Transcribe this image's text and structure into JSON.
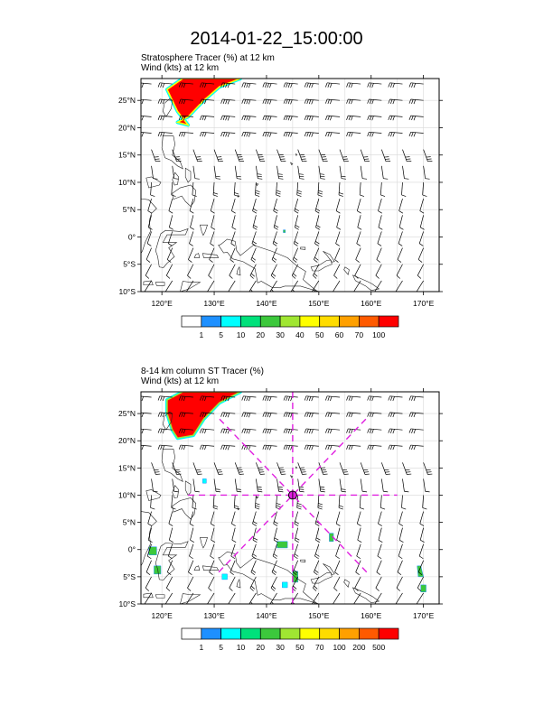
{
  "main_title": "2014-01-22_15:00:00",
  "chart_data": [
    {
      "type": "heatmap",
      "title_lines": [
        "Stratosphere Tracer   (%)    at   12 km",
        "Wind   (kts)     at  12 km"
      ],
      "xlim": [
        116,
        173
      ],
      "ylim": [
        -10,
        29
      ],
      "x_ticks": [
        120,
        130,
        140,
        150,
        160,
        170
      ],
      "x_tick_labels": [
        "120°E",
        "130°E",
        "140°E",
        "150°E",
        "160°E",
        "170°E"
      ],
      "y_ticks": [
        -10,
        -5,
        0,
        5,
        10,
        15,
        20,
        25
      ],
      "y_tick_labels": [
        "10°S",
        "5°S",
        "0°",
        "5°N",
        "10°N",
        "15°N",
        "20°N",
        "25°N"
      ],
      "grid": true,
      "colorbar": {
        "labels": [
          "1",
          "5",
          "10",
          "20",
          "30",
          "40",
          "50",
          "60",
          "70",
          "100"
        ],
        "colors": [
          "#ffffff",
          "#1e90ff",
          "#00ffff",
          "#00e17b",
          "#3cc83c",
          "#a0e632",
          "#ffff00",
          "#ffdc00",
          "#ffa000",
          "#ff5a00",
          "#ff0000"
        ]
      },
      "tracer_regions": [
        {
          "value": 100,
          "outline": [
            [
              124,
              29
            ],
            [
              135,
              29
            ],
            [
              131,
              27.5
            ],
            [
              128,
              25
            ],
            [
              125,
              22
            ],
            [
              123,
              21
            ],
            [
              125,
              20.5
            ],
            [
              123,
              23
            ],
            [
              122,
              25
            ],
            [
              121,
              27
            ]
          ]
        },
        {
          "value": 20,
          "outline": [
            [
              143.2,
              1.3
            ],
            [
              143.6,
              1.3
            ],
            [
              143.6,
              0.8
            ],
            [
              143.2,
              0.8
            ]
          ]
        }
      ],
      "cross_section": null
    },
    {
      "type": "heatmap",
      "title_lines": [
        "8-14 km column ST Tracer   (%)",
        "Wind   (kts)     at  12 km"
      ],
      "xlim": [
        116,
        173
      ],
      "ylim": [
        -10,
        29
      ],
      "x_ticks": [
        120,
        130,
        140,
        150,
        160,
        170
      ],
      "x_tick_labels": [
        "120°E",
        "130°E",
        "140°E",
        "150°E",
        "160°E",
        "170°E"
      ],
      "y_ticks": [
        -10,
        -5,
        0,
        5,
        10,
        15,
        20,
        25
      ],
      "y_tick_labels": [
        "10°S",
        "5°S",
        "0°",
        "5°N",
        "10°N",
        "15°N",
        "20°N",
        "25°N"
      ],
      "grid": true,
      "colorbar": {
        "labels": [
          "1",
          "5",
          "10",
          "20",
          "30",
          "50",
          "70",
          "100",
          "200",
          "500"
        ],
        "colors": [
          "#ffffff",
          "#1e90ff",
          "#00ffff",
          "#00e17b",
          "#3cc83c",
          "#a0e632",
          "#ffff00",
          "#ffdc00",
          "#ffa000",
          "#ff5a00",
          "#ff0000"
        ]
      },
      "tracer_regions": [
        {
          "value": 500,
          "outline": [
            [
              124,
              29
            ],
            [
              135,
              29
            ],
            [
              131,
              27
            ],
            [
              128,
              24
            ],
            [
              126,
              21
            ],
            [
              123,
              20.5
            ],
            [
              122,
              22
            ],
            [
              121,
              25
            ],
            [
              121,
              27.5
            ]
          ]
        },
        {
          "value": 20,
          "outline": [
            [
              117.5,
              0.5
            ],
            [
              119,
              0.5
            ],
            [
              119,
              -1
            ],
            [
              117.5,
              -1
            ]
          ]
        },
        {
          "value": 20,
          "outline": [
            [
              118.5,
              -3
            ],
            [
              119.8,
              -3
            ],
            [
              119.8,
              -4.5
            ],
            [
              118.5,
              -4.5
            ]
          ]
        },
        {
          "value": 20,
          "outline": [
            [
              142,
              1.5
            ],
            [
              144,
              1.5
            ],
            [
              144,
              0.3
            ],
            [
              142,
              0.3
            ]
          ]
        },
        {
          "value": 20,
          "outline": [
            [
              145,
              -4
            ],
            [
              146,
              -4
            ],
            [
              146,
              -6
            ],
            [
              145,
              -6
            ]
          ]
        },
        {
          "value": 20,
          "outline": [
            [
              152,
              3
            ],
            [
              152.8,
              3
            ],
            [
              152.8,
              1.5
            ],
            [
              152,
              1.5
            ]
          ]
        },
        {
          "value": 20,
          "outline": [
            [
              168.8,
              -3
            ],
            [
              169.5,
              -3
            ],
            [
              170,
              -5
            ],
            [
              169,
              -5
            ]
          ]
        },
        {
          "value": 20,
          "outline": [
            [
              169.5,
              -6.5
            ],
            [
              170.5,
              -6.5
            ],
            [
              170.5,
              -7.8
            ],
            [
              169.5,
              -7.8
            ]
          ]
        },
        {
          "value": 5,
          "outline": [
            [
              127.8,
              13
            ],
            [
              128.5,
              13
            ],
            [
              128.5,
              12.2
            ],
            [
              127.8,
              12.2
            ]
          ]
        },
        {
          "value": 5,
          "outline": [
            [
              131.5,
              -4.5
            ],
            [
              132.5,
              -4.5
            ],
            [
              132.5,
              -5.5
            ],
            [
              131.5,
              -5.5
            ]
          ]
        },
        {
          "value": 5,
          "outline": [
            [
              143,
              -6
            ],
            [
              144,
              -6
            ],
            [
              144,
              -7
            ],
            [
              143,
              -7
            ]
          ]
        }
      ],
      "cross_section": {
        "center": [
          145,
          10
        ],
        "radius_deg": 20
      }
    }
  ]
}
